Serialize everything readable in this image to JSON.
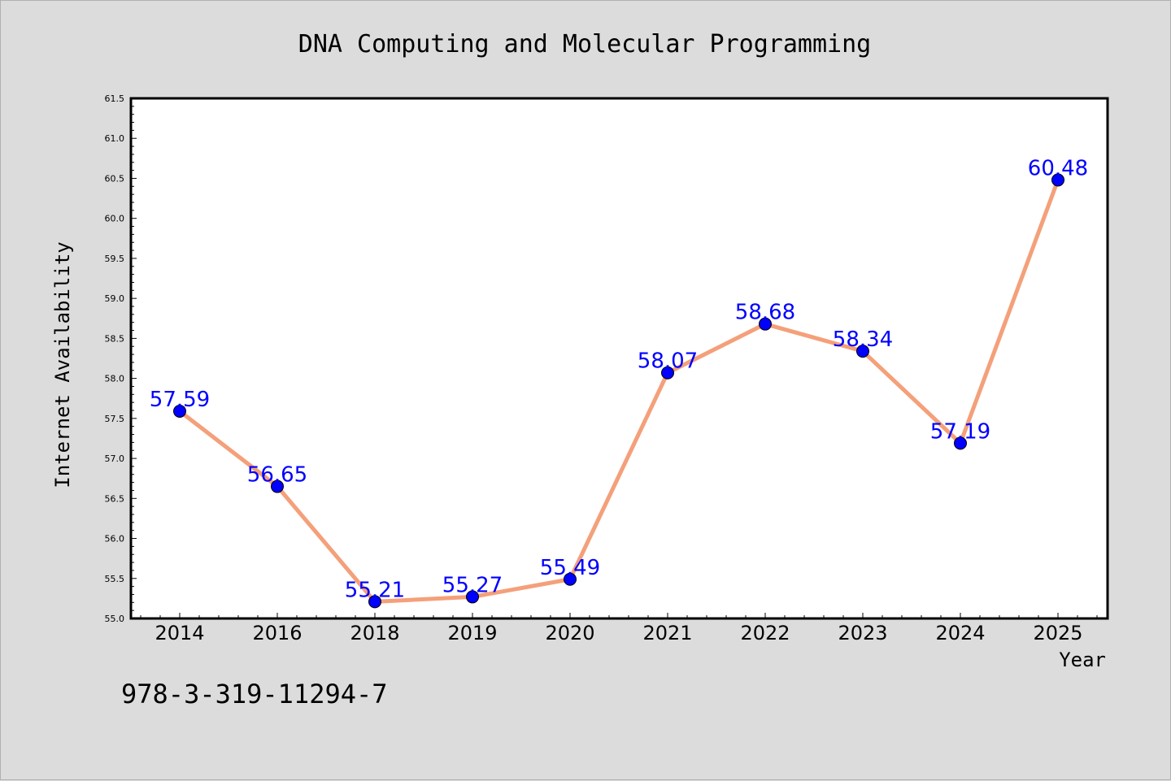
{
  "footer_text": "978-3-319-11294-7",
  "colors": {
    "background": "#dcdcdc",
    "plot_background": "#ffffff",
    "line": "#f4a07a",
    "marker": "#0000ff",
    "data_label": "#0000ff"
  },
  "chart_data": {
    "type": "line",
    "title": "DNA Computing and Molecular Programming",
    "xlabel": "Year",
    "ylabel": "Internet Availability",
    "categories": [
      "2014",
      "2016",
      "2018",
      "2019",
      "2020",
      "2021",
      "2022",
      "2023",
      "2024",
      "2025"
    ],
    "series": [
      {
        "values": [
          57.59,
          56.65,
          55.21,
          55.27,
          55.49,
          58.07,
          58.68,
          58.34,
          57.19,
          60.48
        ],
        "marker": "circle"
      }
    ],
    "data_labels": [
      "57.59",
      "56.65",
      "55.21",
      "55.27",
      "55.49",
      "58.07",
      "58.68",
      "58.34",
      "57.19",
      "60.48"
    ],
    "ylim": [
      55.0,
      61.5
    ],
    "yticks": [
      "55.0",
      "55.5",
      "56.0",
      "56.5",
      "57.0",
      "57.5",
      "58.0",
      "58.5",
      "59.0",
      "59.5",
      "60.0",
      "60.5",
      "61.0",
      "61.5"
    ],
    "grid": false,
    "legend": "none"
  }
}
